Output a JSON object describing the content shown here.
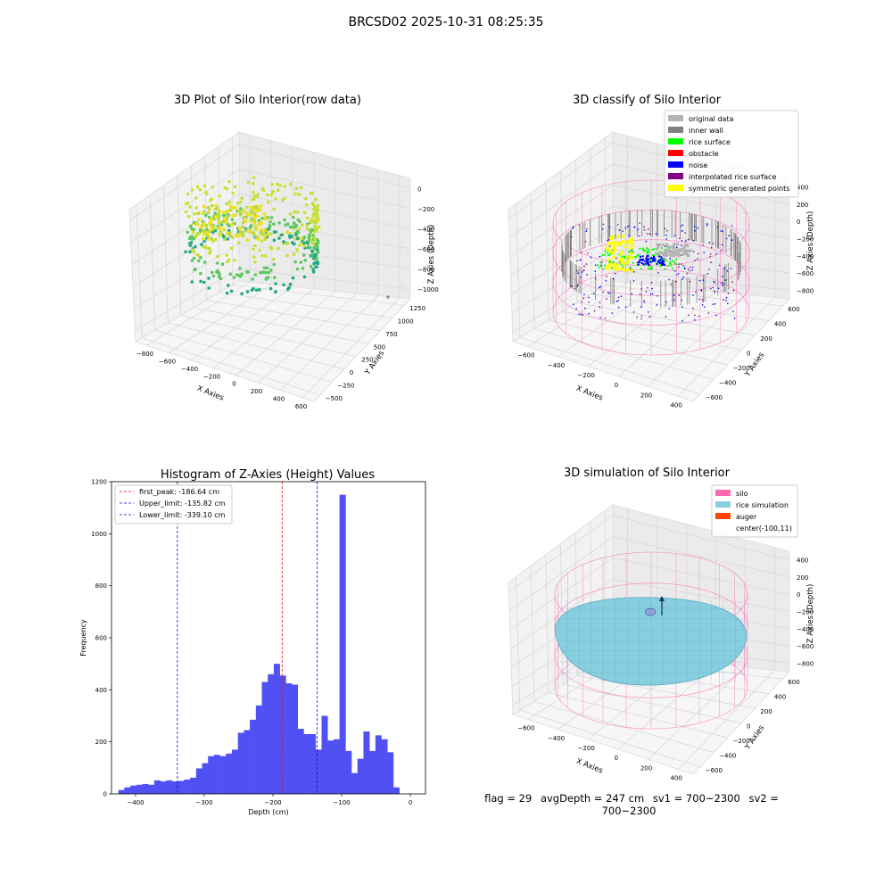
{
  "figure_title": "BRCSD02 2025-10-31 08:25:35",
  "status": {
    "flag": "flag = 29",
    "avg_depth": "avgDepth = 247 cm",
    "sv1": "sv1 = 700~2300",
    "sv2": "sv2 = 700~2300"
  },
  "colors": {
    "hist_bar": "#5050f5",
    "first_peak": "#e01010",
    "limits": "#1010c0",
    "silo": "#ff69b4",
    "rice_sim": "#87cedf",
    "auger": "#ff4500",
    "original": "#b4b4b4",
    "inner_wall": "#808080",
    "rice_surface": "#00ff00",
    "obstacle": "#ff0000",
    "noise": "#0000ff",
    "interp": "#800080",
    "symmetric": "#ffff00"
  },
  "chart_data": [
    {
      "type": "scatter",
      "title": "3D Plot of Silo Interior(row data)",
      "xlabel": "X Axies",
      "ylabel": "Y Axies",
      "zlabel": "Z Axies (Depth)",
      "x_ticks": [
        "−800",
        "−600",
        "−400",
        "−200",
        "0",
        "200",
        "400",
        "600"
      ],
      "y_ticks": [
        "−500",
        "−250",
        "0",
        "250",
        "500",
        "750",
        "1000",
        "1250"
      ],
      "z_ticks": [
        "0",
        "−200",
        "−400",
        "−600",
        "−800",
        "−1000"
      ],
      "grid": true
    },
    {
      "type": "scatter",
      "title": "3D classify of Silo Interior",
      "xlabel": "X Axies",
      "ylabel": "Y Axies",
      "zlabel": "Z Axies (Depth)",
      "x_ticks": [
        "−600",
        "−400",
        "−200",
        "0",
        "200",
        "400"
      ],
      "y_ticks": [
        "−600",
        "−400",
        "−200",
        "0",
        "200",
        "400",
        "600"
      ],
      "z_ticks": [
        "400",
        "200",
        "0",
        "−200",
        "−400",
        "−600",
        "−800"
      ],
      "legend_position": "top-right",
      "legend": [
        {
          "label": "original data",
          "color": "#b4b4b4"
        },
        {
          "label": "inner wall",
          "color": "#808080"
        },
        {
          "label": "rice surface",
          "color": "#00ff00"
        },
        {
          "label": "obstacle",
          "color": "#ff0000"
        },
        {
          "label": "noise",
          "color": "#0000ff"
        },
        {
          "label": "interpolated rice surface",
          "color": "#800080"
        },
        {
          "label": "symmetric generated points",
          "color": "#ffff00"
        }
      ],
      "grid": true
    },
    {
      "type": "bar",
      "title": "Histogram of Z-Axies (Height) Values",
      "xlabel": "Depth (cm)",
      "ylabel": "Frequency",
      "xlim": [
        -435,
        22
      ],
      "ylim": [
        0,
        1200
      ],
      "x_ticks": [
        -400,
        -300,
        -200,
        -100,
        0
      ],
      "x_tick_labels": [
        "−400",
        "−300",
        "−200",
        "−100",
        "0"
      ],
      "y_ticks": [
        0,
        200,
        400,
        600,
        800,
        1000,
        1200
      ],
      "y_tick_labels": [
        "0",
        "200",
        "400",
        "600",
        "800",
        "1000",
        "1200"
      ],
      "bin_start": -425,
      "bin_width": 8.7,
      "values": [
        15,
        25,
        32,
        35,
        38,
        35,
        52,
        48,
        52,
        48,
        50,
        55,
        62,
        98,
        118,
        145,
        150,
        145,
        155,
        170,
        235,
        245,
        285,
        340,
        430,
        460,
        500,
        455,
        425,
        420,
        250,
        230,
        230,
        170,
        300,
        205,
        210,
        1150,
        165,
        80,
        135,
        240,
        165,
        225,
        210,
        160,
        25
      ],
      "lines": [
        {
          "name": "first_peak: -186.64 cm",
          "x": -186.64,
          "color": "#e01010"
        },
        {
          "name": "Upper_limit: -135.82 cm",
          "x": -135.82,
          "color": "#1010c0"
        },
        {
          "name": "Lower_limit: -339.10 cm",
          "x": -339.1,
          "color": "#1010c0"
        }
      ],
      "legend_position": "top-left",
      "grid": false
    },
    {
      "type": "surface",
      "title": "3D simulation of Silo Interior",
      "xlabel": "X Axies",
      "ylabel": "Y Axies",
      "zlabel": "Z Axies (Depth)",
      "x_ticks": [
        "−600",
        "−400",
        "−200",
        "0",
        "200",
        "400"
      ],
      "y_ticks": [
        "−600",
        "−400",
        "−200",
        "0",
        "200",
        "400",
        "600"
      ],
      "z_ticks": [
        "400",
        "200",
        "0",
        "−200",
        "−400",
        "−600",
        "−800"
      ],
      "legend_position": "top-right",
      "legend": [
        {
          "label": "silo",
          "color": "#ff69b4"
        },
        {
          "label": "rice simulation",
          "color": "#87cedf"
        },
        {
          "label": "auger",
          "color": "#ff4500"
        },
        {
          "label": "center(-100,11)",
          "color": ""
        }
      ],
      "grid": true
    }
  ]
}
